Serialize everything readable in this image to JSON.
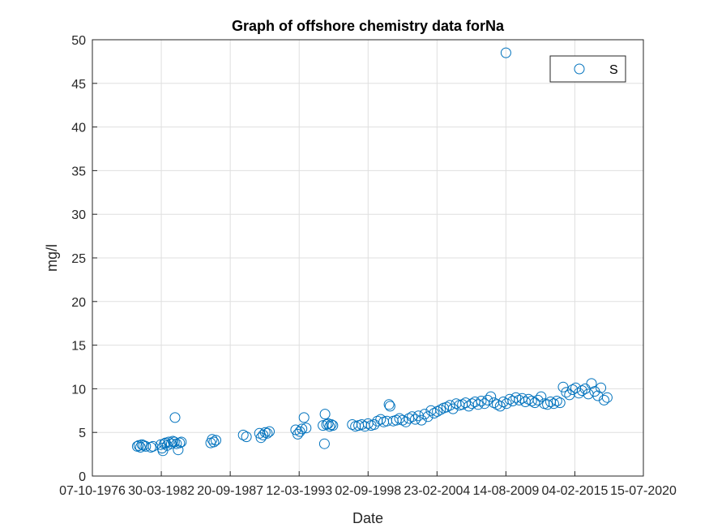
{
  "chart_data": {
    "type": "scatter",
    "title": "Graph of offshore chemistry data forNa",
    "xlabel": "Date",
    "ylabel": "mg/l",
    "xlim": [
      "1976-10-07",
      "2020-07-15"
    ],
    "ylim": [
      0,
      50
    ],
    "x_ticks": [
      "07-10-1976",
      "30-03-1982",
      "20-09-1987",
      "12-03-1993",
      "02-09-1998",
      "23-02-2004",
      "14-08-2009",
      "04-02-2015",
      "15-07-2020"
    ],
    "y_ticks": [
      "0",
      "5",
      "10",
      "15",
      "20",
      "25",
      "30",
      "35",
      "40",
      "45",
      "50"
    ],
    "grid": true,
    "legend_position": "top-right",
    "marker": "open-circle",
    "color": "#0072BD",
    "series": [
      {
        "name": "S",
        "points": [
          [
            "1980-05-01",
            3.4
          ],
          [
            "1980-06-15",
            3.5
          ],
          [
            "1980-08-01",
            3.3
          ],
          [
            "1980-09-15",
            3.6
          ],
          [
            "1980-11-01",
            3.5
          ],
          [
            "1981-01-01",
            3.4
          ],
          [
            "1981-06-01",
            3.3
          ],
          [
            "1981-08-01",
            3.4
          ],
          [
            "1982-03-15",
            3.6
          ],
          [
            "1982-04-20",
            3.2
          ],
          [
            "1982-05-15",
            2.9
          ],
          [
            "1982-06-20",
            3.7
          ],
          [
            "1982-08-01",
            3.8
          ],
          [
            "1982-09-15",
            3.5
          ],
          [
            "1982-11-01",
            3.9
          ],
          [
            "1983-01-15",
            3.7
          ],
          [
            "1983-03-01",
            4.0
          ],
          [
            "1983-04-15",
            3.9
          ],
          [
            "1983-05-01",
            6.7
          ],
          [
            "1983-06-15",
            3.7
          ],
          [
            "1983-08-01",
            3.0
          ],
          [
            "1983-09-15",
            3.8
          ],
          [
            "1983-11-01",
            3.9
          ],
          [
            "1986-03-01",
            3.8
          ],
          [
            "1986-04-15",
            4.2
          ],
          [
            "1986-06-01",
            3.9
          ],
          [
            "1986-08-01",
            4.1
          ],
          [
            "1988-10-01",
            4.7
          ],
          [
            "1989-01-01",
            4.5
          ],
          [
            "1990-01-15",
            4.9
          ],
          [
            "1990-03-01",
            4.4
          ],
          [
            "1990-05-01",
            4.7
          ],
          [
            "1990-07-01",
            5.0
          ],
          [
            "1990-09-01",
            4.9
          ],
          [
            "1990-11-01",
            5.1
          ],
          [
            "1992-12-01",
            5.3
          ],
          [
            "1993-02-01",
            4.8
          ],
          [
            "1993-04-01",
            5.1
          ],
          [
            "1993-06-01",
            5.4
          ],
          [
            "1993-08-01",
            6.7
          ],
          [
            "1993-10-01",
            5.5
          ],
          [
            "1995-02-01",
            5.8
          ],
          [
            "1995-03-15",
            3.7
          ],
          [
            "1995-04-01",
            7.1
          ],
          [
            "1995-05-15",
            5.9
          ],
          [
            "1995-07-01",
            6.0
          ],
          [
            "1995-08-15",
            5.7
          ],
          [
            "1995-10-01",
            5.9
          ],
          [
            "1995-11-15",
            5.8
          ],
          [
            "1997-06-01",
            5.9
          ],
          [
            "1997-09-01",
            5.7
          ],
          [
            "1997-12-01",
            5.8
          ],
          [
            "1998-03-01",
            5.9
          ],
          [
            "1998-06-01",
            5.7
          ],
          [
            "1998-09-01",
            6.0
          ],
          [
            "1998-12-01",
            5.8
          ],
          [
            "1999-03-01",
            5.9
          ],
          [
            "1999-06-01",
            6.3
          ],
          [
            "1999-09-01",
            6.5
          ],
          [
            "1999-12-01",
            6.2
          ],
          [
            "2000-03-01",
            6.3
          ],
          [
            "2000-05-01",
            8.2
          ],
          [
            "2000-06-01",
            8.0
          ],
          [
            "2000-09-01",
            6.3
          ],
          [
            "2000-12-01",
            6.4
          ],
          [
            "2001-03-01",
            6.6
          ],
          [
            "2001-06-01",
            6.4
          ],
          [
            "2001-09-01",
            6.2
          ],
          [
            "2001-12-01",
            6.6
          ],
          [
            "2002-03-01",
            6.8
          ],
          [
            "2002-06-01",
            6.5
          ],
          [
            "2002-09-01",
            6.9
          ],
          [
            "2002-12-01",
            6.4
          ],
          [
            "2003-03-01",
            7.1
          ],
          [
            "2003-06-01",
            6.8
          ],
          [
            "2003-09-01",
            7.5
          ],
          [
            "2003-12-01",
            7.2
          ],
          [
            "2004-03-01",
            7.4
          ],
          [
            "2004-06-01",
            7.6
          ],
          [
            "2004-09-01",
            7.8
          ],
          [
            "2004-12-01",
            7.9
          ],
          [
            "2005-03-01",
            8.1
          ],
          [
            "2005-06-01",
            7.7
          ],
          [
            "2005-09-01",
            8.3
          ],
          [
            "2005-12-01",
            8.1
          ],
          [
            "2006-03-01",
            8.2
          ],
          [
            "2006-06-01",
            8.4
          ],
          [
            "2006-09-01",
            8.0
          ],
          [
            "2006-12-01",
            8.3
          ],
          [
            "2007-03-01",
            8.5
          ],
          [
            "2007-06-01",
            8.2
          ],
          [
            "2007-09-01",
            8.6
          ],
          [
            "2007-12-01",
            8.3
          ],
          [
            "2008-03-01",
            8.7
          ],
          [
            "2008-06-01",
            9.1
          ],
          [
            "2008-09-01",
            8.4
          ],
          [
            "2008-12-01",
            8.2
          ],
          [
            "2009-03-01",
            8.0
          ],
          [
            "2009-06-01",
            8.5
          ],
          [
            "2009-08-14",
            48.5
          ],
          [
            "2009-09-01",
            8.3
          ],
          [
            "2009-12-01",
            8.8
          ],
          [
            "2010-03-01",
            8.6
          ],
          [
            "2010-06-01",
            9.0
          ],
          [
            "2010-09-01",
            8.7
          ],
          [
            "2010-12-01",
            8.9
          ],
          [
            "2011-03-01",
            8.5
          ],
          [
            "2011-06-01",
            8.8
          ],
          [
            "2011-09-01",
            8.6
          ],
          [
            "2011-12-01",
            8.4
          ],
          [
            "2012-03-01",
            8.7
          ],
          [
            "2012-06-01",
            9.1
          ],
          [
            "2012-09-01",
            8.3
          ],
          [
            "2012-12-01",
            8.2
          ],
          [
            "2013-03-01",
            8.5
          ],
          [
            "2013-06-01",
            8.3
          ],
          [
            "2013-09-01",
            8.6
          ],
          [
            "2013-12-01",
            8.4
          ],
          [
            "2014-03-01",
            10.2
          ],
          [
            "2014-06-01",
            9.6
          ],
          [
            "2014-09-01",
            9.3
          ],
          [
            "2014-12-01",
            9.9
          ],
          [
            "2015-03-01",
            10.1
          ],
          [
            "2015-06-01",
            9.5
          ],
          [
            "2015-09-01",
            9.8
          ],
          [
            "2015-12-01",
            10.0
          ],
          [
            "2016-03-01",
            9.4
          ],
          [
            "2016-06-01",
            10.6
          ],
          [
            "2016-09-01",
            9.7
          ],
          [
            "2016-12-01",
            9.2
          ],
          [
            "2017-03-01",
            10.1
          ],
          [
            "2017-06-01",
            8.7
          ],
          [
            "2017-09-01",
            9.0
          ]
        ]
      }
    ]
  }
}
